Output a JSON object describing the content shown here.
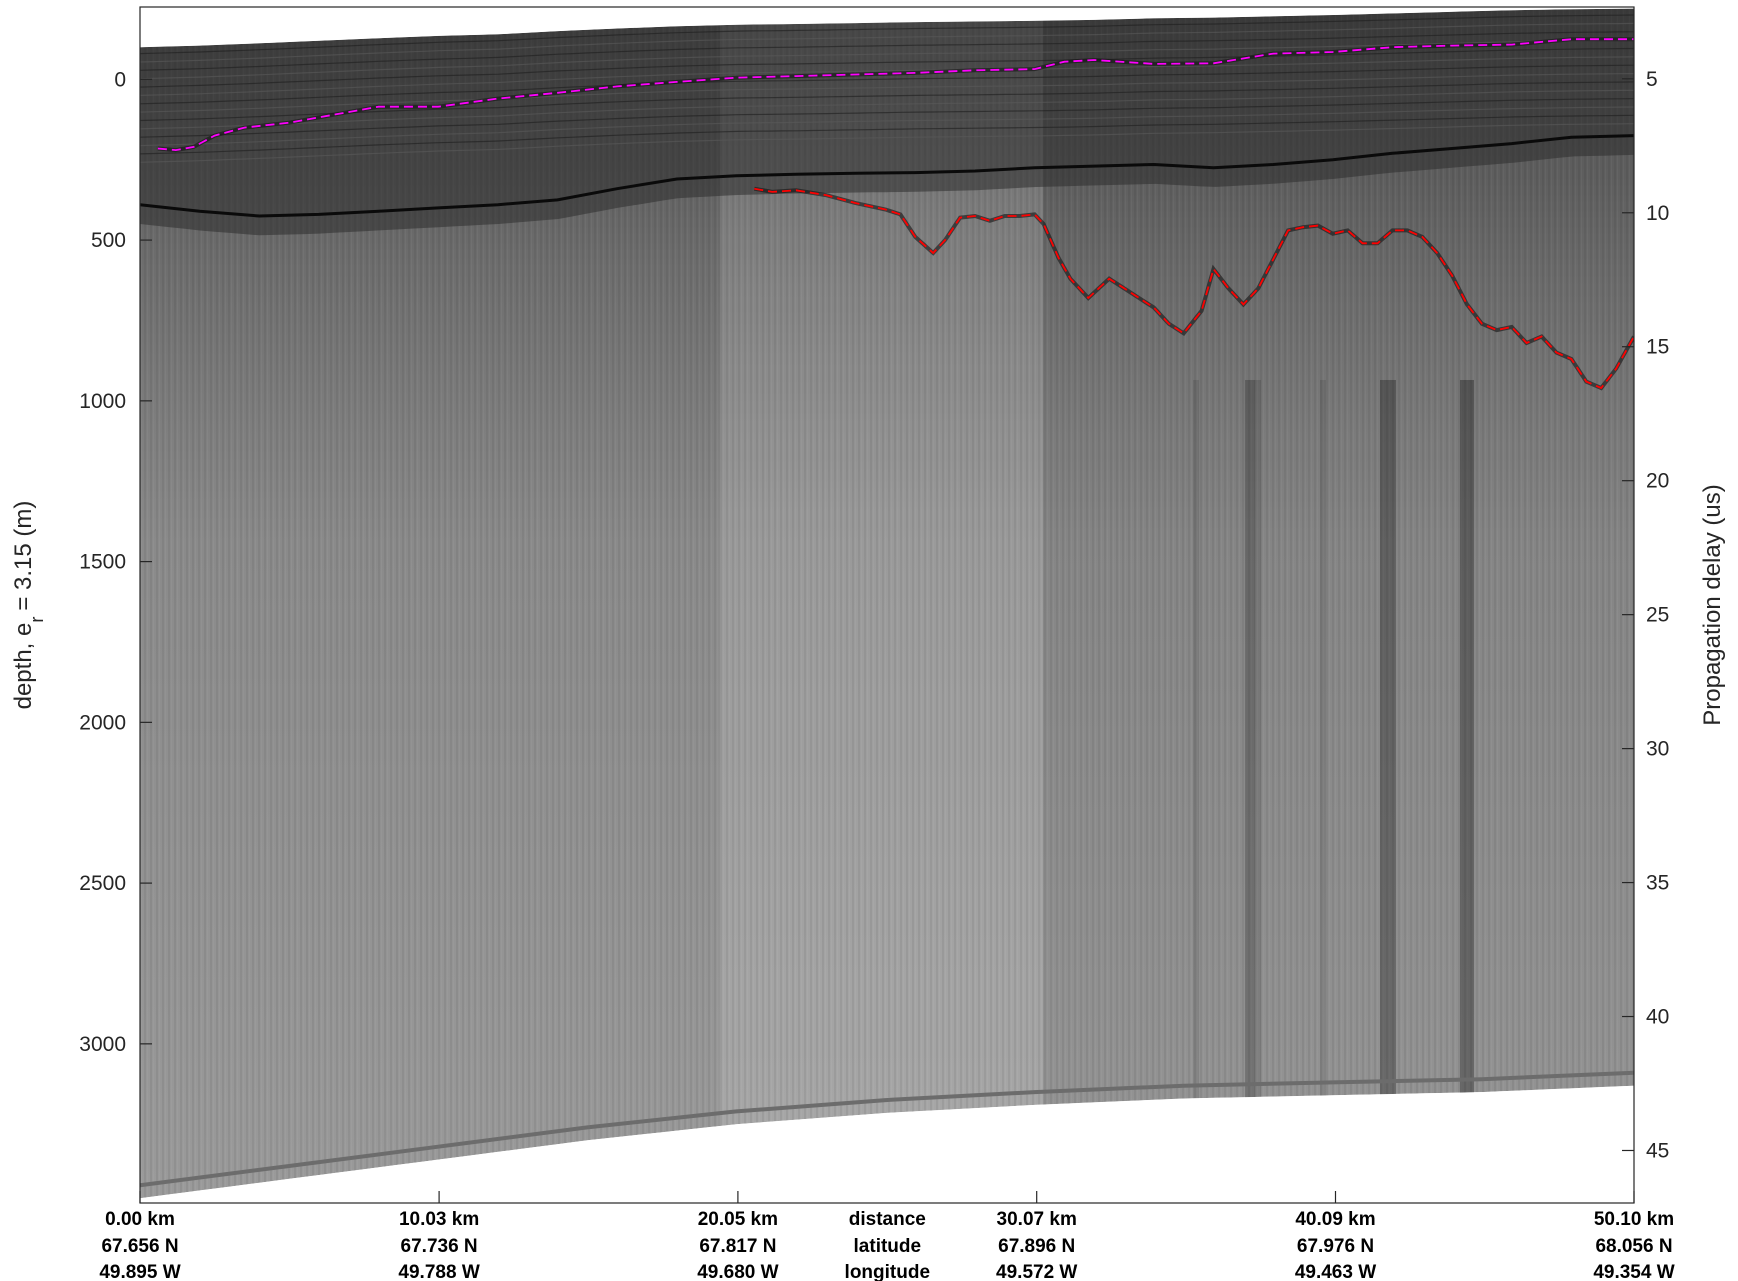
{
  "chart_data": {
    "type": "radargram",
    "ylabel": {
      "main": "depth, e",
      "subscript": "r",
      "rest": "= 3.15 (m)"
    },
    "y2label": "Propagation delay (us)",
    "yticks": [
      0,
      500,
      1000,
      1500,
      2000,
      2500,
      3000
    ],
    "ylim": [
      -225,
      3495
    ],
    "y2ticks": [
      5,
      10,
      15,
      20,
      25,
      30,
      35,
      40,
      45
    ],
    "y2lim": [
      2.32,
      46.96
    ],
    "x_rows": [
      {
        "kind": "distance",
        "values": [
          "0.00 km",
          "10.03 km",
          "20.05 km",
          "30.07 km",
          "40.09 km",
          "50.10 km"
        ],
        "center_label": "distance"
      },
      {
        "kind": "latitude",
        "values": [
          "67.656 N",
          "67.736 N",
          "67.817 N",
          "67.896 N",
          "67.976 N",
          "68.056 N"
        ],
        "center_label": "latitude"
      },
      {
        "kind": "longitude",
        "values": [
          "49.895 W",
          "49.788 W",
          "49.680 W",
          "49.572 W",
          "49.463 W",
          "49.354 W"
        ],
        "center_label": "longitude"
      }
    ],
    "distance_km": [
      0.0,
      10.03,
      20.05,
      30.07,
      40.09,
      50.1
    ],
    "xlim": [
      0.0,
      50.1
    ],
    "colormap": "gray",
    "series": [
      {
        "type": "dashed-line",
        "color": "#ff00ff",
        "x": [
          0.6,
          1.2,
          1.8,
          2.5,
          3.5,
          5,
          6.5,
          8,
          10,
          12,
          14,
          16,
          18,
          20,
          22,
          24,
          26,
          28,
          30,
          31,
          32,
          34,
          36,
          38,
          40,
          42,
          44,
          46,
          48,
          50.1
        ],
        "y": [
          215,
          220,
          210,
          175,
          150,
          135,
          110,
          85,
          85,
          60,
          42,
          22,
          8,
          -5,
          -10,
          -15,
          -20,
          -28,
          -32,
          -55,
          -60,
          -48,
          -50,
          -80,
          -85,
          -100,
          -105,
          -108,
          -125,
          -125
        ]
      },
      {
        "type": "dashed-line",
        "color": "#ff0000",
        "x": [
          20.6,
          21.2,
          22,
          23,
          24,
          25,
          25.5,
          26,
          26.6,
          27,
          27.5,
          28,
          28.5,
          29,
          29.5,
          30,
          30.3,
          30.8,
          31.2,
          31.8,
          32.5,
          33,
          33.5,
          34,
          34.5,
          35,
          35.6,
          36,
          36.5,
          37,
          37.5,
          38,
          38.5,
          39,
          39.5,
          40,
          40.5,
          41,
          41.5,
          42,
          42.5,
          43,
          43.5,
          44,
          44.5,
          45,
          45.5,
          46,
          46.5,
          47,
          47.5,
          48,
          48.5,
          49,
          49.5,
          50.1
        ],
        "y": [
          340,
          350,
          345,
          360,
          385,
          405,
          420,
          490,
          540,
          500,
          430,
          425,
          440,
          425,
          425,
          420,
          450,
          555,
          620,
          680,
          620,
          650,
          680,
          710,
          760,
          790,
          720,
          590,
          650,
          700,
          650,
          560,
          470,
          460,
          455,
          480,
          470,
          510,
          510,
          470,
          470,
          490,
          540,
          610,
          700,
          760,
          780,
          770,
          820,
          800,
          850,
          870,
          940,
          960,
          900,
          800
        ]
      }
    ],
    "layers": [
      {
        "name": "surface",
        "x": [
          0,
          2,
          4,
          6,
          8,
          10,
          12,
          14,
          16,
          18,
          20,
          22,
          24,
          26,
          28,
          30,
          32,
          34,
          36,
          38,
          40,
          42,
          44,
          46,
          48,
          50.1
        ],
        "y": [
          -100,
          -105,
          -112,
          -120,
          -128,
          -135,
          -140,
          -150,
          -158,
          -165,
          -170,
          -172,
          -175,
          -178,
          -180,
          -182,
          -185,
          -190,
          -192,
          -196,
          -200,
          -205,
          -210,
          -215,
          -218,
          -220
        ]
      },
      {
        "name": "bright-horizon",
        "x": [
          0,
          2,
          4,
          6,
          8,
          10,
          12,
          14,
          16,
          18,
          20,
          22,
          24,
          26,
          28,
          30,
          32,
          34,
          36,
          38,
          40,
          42,
          44,
          46,
          48,
          50.1
        ],
        "y": [
          390,
          410,
          425,
          420,
          410,
          400,
          390,
          375,
          340,
          310,
          300,
          295,
          292,
          290,
          285,
          275,
          270,
          265,
          275,
          265,
          250,
          230,
          215,
          200,
          180,
          175
        ]
      },
      {
        "name": "bed-echo",
        "x": [
          0,
          5,
          10,
          15,
          20,
          25,
          30,
          35,
          40,
          45,
          50.1
        ],
        "y": [
          3440,
          3380,
          3320,
          3260,
          3210,
          3175,
          3150,
          3130,
          3120,
          3110,
          3090
        ]
      }
    ]
  }
}
